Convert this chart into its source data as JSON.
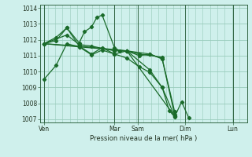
{
  "bg_color": "#cff0ec",
  "grid_color": "#99ccbb",
  "line_color": "#1a6b2a",
  "marker_color": "#1a6b2a",
  "xlabel": "Pression niveau de la mer( hPa )",
  "ylim": [
    1006.8,
    1014.2
  ],
  "yticks": [
    1007,
    1008,
    1009,
    1010,
    1011,
    1012,
    1013,
    1014
  ],
  "xtick_labels": [
    "Ven",
    "Mar",
    "Sam",
    "Dim",
    "Lun"
  ],
  "xtick_positions": [
    0,
    40,
    53,
    80,
    107
  ],
  "vline_positions": [
    0,
    40,
    53,
    80,
    107
  ],
  "xlim": [
    -2,
    115
  ],
  "series": [
    [
      0,
      1009.5,
      7,
      1010.4,
      13,
      1011.75,
      20,
      1011.55,
      27,
      1011.05,
      33,
      1011.35,
      40,
      1011.1,
      47,
      1010.85,
      54,
      1010.3,
      60,
      1009.95,
      67,
      1009.0,
      74,
      1007.2
    ],
    [
      0,
      1011.75,
      7,
      1011.95,
      13,
      1012.75,
      20,
      1011.8,
      23,
      1012.5,
      27,
      1012.8,
      30,
      1013.4,
      33,
      1013.55,
      40,
      1011.5,
      43,
      1011.3,
      47,
      1011.3,
      54,
      1011.1,
      67,
      1010.9
    ],
    [
      0,
      1011.75,
      7,
      1012.15,
      13,
      1012.75,
      20,
      1011.6,
      27,
      1011.1,
      33,
      1011.5,
      40,
      1011.1,
      47,
      1011.3,
      54,
      1011.0,
      60,
      1011.1,
      67,
      1010.8,
      74,
      1007.5
    ],
    [
      0,
      1011.75,
      20,
      1011.6,
      47,
      1011.3,
      74,
      1007.2
    ],
    [
      0,
      1011.75,
      13,
      1012.3,
      20,
      1011.7,
      27,
      1011.6,
      40,
      1011.3,
      47,
      1011.3,
      60,
      1011.1,
      67,
      1010.8,
      74,
      1007.3
    ],
    [
      0,
      1011.75,
      20,
      1011.55,
      47,
      1011.3,
      60,
      1010.1,
      67,
      1009.0,
      71,
      1007.55,
      74,
      1007.15,
      78,
      1008.1,
      82,
      1007.1
    ]
  ]
}
